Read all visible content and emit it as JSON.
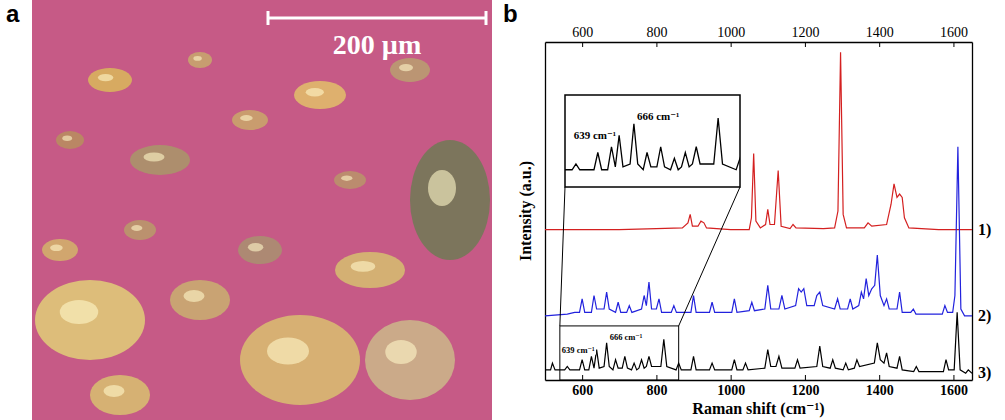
{
  "panel_a": {
    "label": "a",
    "scale_bar": "200 µm"
  },
  "chart_data": {
    "type": "line",
    "panel_label": "b",
    "x_label": "Raman shift (cm⁻¹)",
    "y_label": "Intensity (a.u.)",
    "xlim": [
      500,
      1650
    ],
    "xticks": [
      600,
      800,
      1000,
      1200,
      1400,
      1600
    ],
    "ylim": [
      0,
      100
    ],
    "tick_labels": "x",
    "series": [
      {
        "name": "1)",
        "color": "#d42020",
        "x": [
          500,
          600,
          700,
          800,
          870,
          885,
          891,
          897,
          912,
          920,
          928,
          935,
          1000,
          1050,
          1056,
          1062,
          1068,
          1080,
          1094,
          1100,
          1106,
          1118,
          1128,
          1136,
          1160,
          1168,
          1176,
          1250,
          1280,
          1289,
          1296,
          1303,
          1312,
          1360,
          1370,
          1380,
          1420,
          1432,
          1440,
          1448,
          1455,
          1462,
          1468,
          1480,
          1560,
          1650
        ],
        "values": [
          44.5,
          44.5,
          44.5,
          44.8,
          45,
          46.5,
          49,
          45.5,
          45.5,
          47,
          46.5,
          45,
          44.5,
          44.5,
          48,
          67,
          47,
          45,
          46,
          50.5,
          46,
          46,
          62,
          45.5,
          44.8,
          46,
          45,
          44.8,
          45,
          50,
          97,
          49,
          45,
          45,
          46.5,
          45.5,
          46,
          52,
          58,
          54,
          55,
          54,
          48,
          45,
          44.5,
          44.5
        ]
      },
      {
        "name": "2)",
        "color": "#2222dd",
        "x": [
          500,
          560,
          580,
          593,
          600,
          607,
          625,
          632,
          639,
          659,
          666,
          673,
          690,
          697,
          704,
          720,
          727,
          734,
          760,
          767,
          773,
          780,
          787,
          800,
          807,
          814,
          840,
          847,
          854,
          893,
          900,
          907,
          943,
          950,
          957,
          1003,
          1010,
          1017,
          1050,
          1057,
          1064,
          1092,
          1100,
          1108,
          1130,
          1138,
          1146,
          1175,
          1183,
          1190,
          1197,
          1205,
          1225,
          1232,
          1240,
          1248,
          1280,
          1288,
          1295,
          1315,
          1322,
          1329,
          1345,
          1352,
          1358,
          1365,
          1372,
          1380,
          1388,
          1395,
          1403,
          1413,
          1420,
          1427,
          1448,
          1455,
          1462,
          1485,
          1492,
          1499,
          1570,
          1577,
          1584,
          1598,
          1604,
          1612,
          1620,
          1630,
          1650
        ],
        "values": [
          19,
          19.5,
          20,
          20,
          24,
          20,
          20,
          25,
          21,
          21,
          26,
          21,
          20,
          23,
          20,
          20,
          22,
          20,
          21,
          25,
          22,
          29,
          21,
          21,
          24,
          20,
          20,
          22,
          20,
          20,
          25,
          20,
          20,
          23,
          20,
          20,
          24,
          20,
          20.5,
          23,
          20.5,
          21,
          28,
          21,
          21,
          25,
          21,
          22,
          27,
          26,
          27,
          22,
          22,
          25,
          26,
          22,
          21,
          24,
          21,
          21,
          24,
          21,
          22,
          26,
          24,
          30,
          25,
          27,
          28,
          37,
          25,
          22,
          24,
          21,
          21,
          26,
          20,
          20,
          21,
          19.5,
          19.5,
          22,
          20,
          20,
          25,
          69,
          21,
          19,
          19
        ]
      },
      {
        "name": "3)",
        "color": "#000000",
        "x": [
          500,
          515,
          520,
          527,
          553,
          560,
          567,
          593,
          600,
          607,
          618,
          625,
          632,
          639,
          646,
          659,
          666,
          673,
          683,
          690,
          697,
          708,
          715,
          722,
          733,
          740,
          747,
          753,
          760,
          767,
          773,
          780,
          787,
          812,
          820,
          828,
          853,
          860,
          867,
          893,
          900,
          907,
          943,
          950,
          957,
          1003,
          1010,
          1017,
          1033,
          1040,
          1047,
          1092,
          1100,
          1108,
          1122,
          1130,
          1138,
          1173,
          1180,
          1187,
          1232,
          1240,
          1248,
          1268,
          1275,
          1282,
          1303,
          1310,
          1317,
          1333,
          1340,
          1347,
          1387,
          1395,
          1403,
          1413,
          1420,
          1427,
          1448,
          1455,
          1462,
          1493,
          1500,
          1507,
          1573,
          1580,
          1587,
          1602,
          1610,
          1618,
          1633,
          1640,
          1650
        ],
        "values": [
          3,
          3,
          5,
          3,
          3,
          4,
          3,
          3,
          6,
          3,
          3,
          7,
          3.5,
          9,
          3.5,
          4,
          11,
          4,
          3,
          6,
          3.5,
          3.5,
          7,
          3.5,
          3,
          5,
          3,
          3.5,
          6,
          3.5,
          4,
          7,
          4,
          4,
          12,
          4,
          3,
          5,
          3,
          3,
          7,
          3,
          3,
          5,
          3,
          3,
          6,
          3,
          3,
          5,
          3,
          3.5,
          9,
          4,
          4,
          7,
          3.5,
          3.5,
          6,
          3.5,
          4,
          10,
          4,
          3.5,
          6,
          3.5,
          3,
          5,
          3,
          3.5,
          6,
          4,
          5,
          11,
          6,
          5,
          8,
          4,
          3.5,
          7,
          3,
          2.5,
          4,
          2.5,
          2.5,
          6,
          3,
          3,
          20,
          3,
          2,
          3,
          2
        ]
      }
    ],
    "inset": {
      "xlim": [
        540,
        860
      ],
      "ylim": [
        0,
        16
      ],
      "annotations": [
        {
          "x": 639,
          "label": "639 cm⁻¹"
        },
        {
          "x": 666,
          "label": "666 cm⁻¹"
        }
      ]
    }
  }
}
